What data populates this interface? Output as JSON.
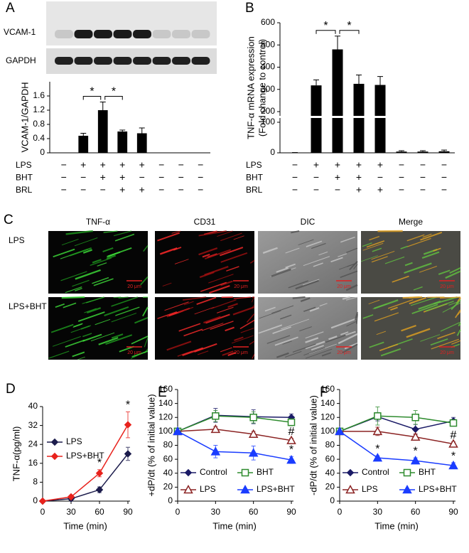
{
  "panel_labels": [
    "A",
    "B",
    "C",
    "D",
    "E",
    "F"
  ],
  "blot": {
    "bands": [
      "VCAM-1",
      "GAPDH"
    ]
  },
  "micrographs": {
    "columns": [
      "TNF-α",
      "CD31",
      "DIC",
      "Merge"
    ],
    "rows": [
      "LPS",
      "LPS+BHT"
    ],
    "scale_bar": "20 μm"
  },
  "chart_data": [
    {
      "type": "bar",
      "ylabel": "VCAM-1/GAPDH",
      "categories": [
        null,
        null,
        null,
        null,
        null,
        null,
        null,
        null
      ],
      "values": [
        null,
        0.48,
        1.2,
        0.6,
        0.55,
        null,
        null,
        null
      ],
      "errors": [
        null,
        0.07,
        0.23,
        0.04,
        0.15,
        null,
        null,
        null
      ],
      "color": "#000000",
      "ylim": [
        0,
        2
      ],
      "yticks": [
        0,
        0.4,
        0.8,
        1.2,
        1.6
      ],
      "annotations": [
        "*",
        "*"
      ],
      "treatments": [
        {
          "name": "LPS",
          "signs": [
            "−",
            "+",
            "+",
            "+",
            "+",
            "−",
            "−",
            "−"
          ]
        },
        {
          "name": "BHT",
          "signs": [
            "−",
            "−",
            "+",
            "+",
            "−",
            "−",
            "−",
            "−"
          ]
        },
        {
          "name": "BRL",
          "signs": [
            "−",
            "−",
            "−",
            "+",
            "+",
            "−",
            "−",
            "−"
          ]
        }
      ]
    },
    {
      "type": "bar",
      "ylabel": [
        "TNF-α mRNA expression",
        "(Fold change to control)"
      ],
      "categories": [
        null,
        null,
        null,
        null,
        null,
        null,
        null,
        null
      ],
      "values": [
        1,
        318,
        480,
        325,
        320,
        4,
        4,
        5
      ],
      "errors": [
        0,
        25,
        60,
        40,
        38,
        3,
        3,
        4
      ],
      "color": "#000000",
      "ylim": [
        0,
        600
      ],
      "yticks": [
        0,
        100,
        200,
        300,
        400,
        500,
        600
      ],
      "axis_break": [
        100,
        200
      ],
      "annotations": [
        "*",
        "*"
      ],
      "treatments": [
        {
          "name": "LPS",
          "signs": [
            "−",
            "+",
            "+",
            "+",
            "+",
            "−",
            "−",
            "−"
          ]
        },
        {
          "name": "BHT",
          "signs": [
            "−",
            "−",
            "+",
            "+",
            "−",
            "−",
            "−",
            "−"
          ]
        },
        {
          "name": "BRL",
          "signs": [
            "−",
            "−",
            "−",
            "+",
            "+",
            "−",
            "−",
            "−"
          ]
        }
      ]
    },
    {
      "type": "line",
      "xlabel": "Time (min)",
      "ylabel": "TNF-α(pg/ml)",
      "x": [
        0,
        30,
        60,
        90
      ],
      "xlim": [
        0,
        90
      ],
      "xticks": [
        0,
        30,
        60,
        90
      ],
      "ylim": [
        0,
        40
      ],
      "yticks": [
        0,
        8,
        16,
        24,
        32,
        40
      ],
      "legend": "upper left",
      "series": [
        {
          "name": "LPS",
          "color": "#1c1c4c",
          "marker": "diamond",
          "values": [
            0,
            1,
            4.8,
            20
          ],
          "errors": [
            0,
            0.8,
            1.2,
            2.8
          ]
        },
        {
          "name": "LPS+BHT",
          "color": "#e8221c",
          "marker": "diamond",
          "values": [
            0,
            1.8,
            11.8,
            32.3
          ],
          "errors": [
            0,
            0.5,
            1.5,
            5.5
          ]
        }
      ],
      "annotations": [
        {
          "text": "*",
          "x": 60,
          "series": "LPS+BHT"
        },
        {
          "text": "*",
          "x": 90,
          "series": "LPS+BHT"
        }
      ]
    },
    {
      "type": "line",
      "xlabel": "Time (min)",
      "ylabel": "+dP/dt  (% of initial value)",
      "x": [
        0,
        30,
        60,
        90
      ],
      "xlim": [
        0,
        90
      ],
      "xticks": [
        0,
        30,
        60,
        90
      ],
      "ylim": [
        0,
        160
      ],
      "yticks": [
        0,
        20,
        40,
        60,
        80,
        100,
        120,
        140,
        160
      ],
      "legend": "lower",
      "series": [
        {
          "name": "Control",
          "color": "#1a1a66",
          "marker": "diamond",
          "values": [
            100,
            123,
            121,
            120
          ],
          "errors": [
            0,
            10,
            10,
            5
          ]
        },
        {
          "name": "BHT",
          "color": "#2e8b2e",
          "marker": "square-open",
          "values": [
            100,
            122,
            120,
            113
          ],
          "errors": [
            0,
            8,
            8,
            5
          ]
        },
        {
          "name": "LPS",
          "color": "#8b2323",
          "marker": "triangle-open",
          "values": [
            100,
            103,
            96,
            87
          ],
          "errors": [
            0,
            4,
            4,
            3
          ]
        },
        {
          "name": "LPS+BHT",
          "color": "#1a3cff",
          "marker": "triangle",
          "values": [
            100,
            71,
            69,
            59
          ],
          "errors": [
            0,
            9,
            10,
            5
          ]
        }
      ],
      "annotations": [
        {
          "text": "#",
          "x": 90,
          "series": "LPS"
        },
        {
          "text": "*",
          "x": 90,
          "series": "LPS+BHT"
        }
      ]
    },
    {
      "type": "line",
      "xlabel": "Time (min)",
      "ylabel": "-dP/dt (% of initial value)",
      "x": [
        0,
        30,
        60,
        90
      ],
      "xlim": [
        0,
        90
      ],
      "xticks": [
        0,
        30,
        60,
        90
      ],
      "ylim": [
        0,
        160
      ],
      "yticks": [
        0,
        20,
        40,
        60,
        80,
        100,
        120,
        140,
        160
      ],
      "legend": "lower",
      "series": [
        {
          "name": "Control",
          "color": "#1a1a66",
          "marker": "diamond",
          "values": [
            100,
            121,
            103,
            115
          ],
          "errors": [
            0,
            6,
            7,
            5
          ]
        },
        {
          "name": "BHT",
          "color": "#2e8b2e",
          "marker": "square-open",
          "values": [
            100,
            122,
            120,
            112
          ],
          "errors": [
            0,
            13,
            10,
            4
          ]
        },
        {
          "name": "LPS",
          "color": "#8b2323",
          "marker": "triangle-open",
          "values": [
            100,
            100,
            92,
            82
          ],
          "errors": [
            0,
            6,
            4,
            3
          ]
        },
        {
          "name": "LPS+BHT",
          "color": "#1a3cff",
          "marker": "triangle",
          "values": [
            100,
            62,
            58,
            51
          ],
          "errors": [
            0,
            3,
            4,
            4
          ]
        }
      ],
      "annotations": [
        {
          "text": "#",
          "x": 90,
          "series": "LPS"
        },
        {
          "text": "*",
          "x": 30,
          "series": "LPS+BHT"
        },
        {
          "text": "*",
          "x": 60,
          "series": "LPS+BHT"
        },
        {
          "text": "*",
          "x": 90,
          "series": "LPS+BHT"
        }
      ]
    }
  ]
}
